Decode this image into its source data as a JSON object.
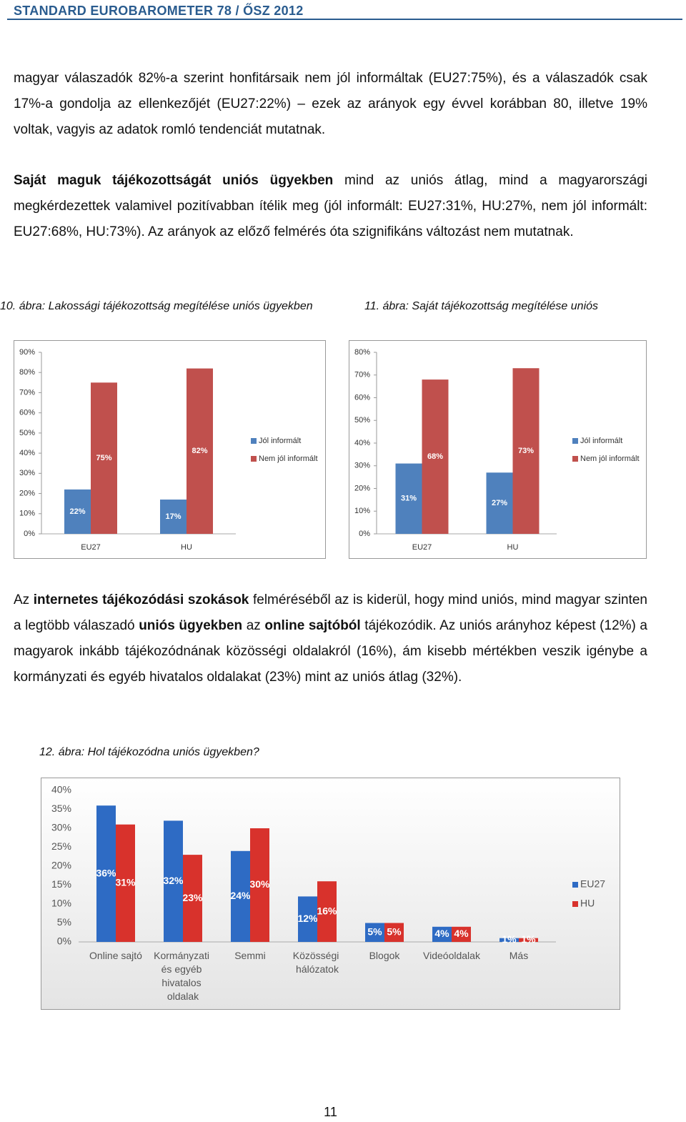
{
  "header": {
    "title": "STANDARD EUROBAROMETER 78 / ŐSZ 2012"
  },
  "paragraphs": [
    {
      "runs": [
        {
          "text": "magyar válaszadók 82%-a szerint honfitársaik nem jól informáltak (EU27:75%), és a válaszadók csak 17%-a gondolja az ellenkezőjét (EU27:22%) – ezek az arányok egy évvel korábban 80, illetve 19% voltak, vagyis az adatok romló tendenciát mutatnak."
        }
      ]
    },
    {
      "runs": [
        {
          "text": "Saját maguk tájékozottságát uniós ügyekben",
          "bold": true
        },
        {
          "text": " mind az uniós átlag, mind a magyarországi megkérdezettek valamivel pozitívabban ítélik meg (jól informált: EU27:31%, HU:27%, nem jól informált: EU27:68%, HU:73%). Az arányok az előző felmérés óta szignifikáns változást nem mutatnak."
        }
      ]
    },
    {
      "runs": [
        {
          "text": "Az "
        },
        {
          "text": "internetes tájékozódási szokások",
          "bold": true
        },
        {
          "text": " felméréséből az is kiderül, hogy mind uniós, mind magyar szinten a legtöbb válaszadó "
        },
        {
          "text": "uniós ügyekben",
          "bold": true
        },
        {
          "text": " az "
        },
        {
          "text": "online sajtóból",
          "bold": true
        },
        {
          "text": " tájékozódik. Az uniós arányhoz képest (12%) a magyarok inkább tájékozódnának közösségi oldalakról (16%), ám kisebb mértékben veszik igénybe a kormányzati és egyéb hivatalos oldalakat (23%) mint az uniós átlag (32%)."
        }
      ]
    }
  ],
  "captions": [
    "10. ábra: Lakossági tájékozottság megítélése uniós ügyekben",
    "11. ábra: Saját tájékozottság megítélése uniós",
    "12. ábra: Hol tájékozódna uniós ügyekben?"
  ],
  "chart_data": [
    {
      "type": "bar",
      "categories": [
        "EU27",
        "HU"
      ],
      "series": [
        {
          "name": "Jól informált",
          "color": "#4f81bd",
          "values": [
            22,
            17
          ],
          "value_labels": [
            "22%",
            "17%"
          ]
        },
        {
          "name": "Nem jól informált",
          "color": "#c0504d",
          "values": [
            75,
            82
          ],
          "value_labels": [
            "75%",
            "82%"
          ]
        }
      ],
      "ylim": [
        0,
        90
      ],
      "yticks": [
        {
          "value": 0,
          "label": "0%"
        },
        {
          "value": 10,
          "label": "10%"
        },
        {
          "value": 20,
          "label": "20%"
        },
        {
          "value": 30,
          "label": "30%"
        },
        {
          "value": 40,
          "label": "40%"
        },
        {
          "value": 50,
          "label": "50%"
        },
        {
          "value": 60,
          "label": "60%"
        },
        {
          "value": 70,
          "label": "70%"
        },
        {
          "value": 80,
          "label": "80%"
        },
        {
          "value": 90,
          "label": "90%"
        }
      ],
      "grid": false,
      "legend": "right"
    },
    {
      "type": "bar",
      "categories": [
        "EU27",
        "HU"
      ],
      "series": [
        {
          "name": "Jól informált",
          "color": "#4f81bd",
          "values": [
            31,
            27
          ],
          "value_labels": [
            "31%",
            "27%"
          ]
        },
        {
          "name": "Nem jól informált",
          "color": "#c0504d",
          "values": [
            68,
            73
          ],
          "value_labels": [
            "68%",
            "73%"
          ]
        }
      ],
      "ylim": [
        0,
        80
      ],
      "yticks": [
        {
          "value": 0,
          "label": "0%"
        },
        {
          "value": 10,
          "label": "10%"
        },
        {
          "value": 20,
          "label": "20%"
        },
        {
          "value": 30,
          "label": "30%"
        },
        {
          "value": 40,
          "label": "40%"
        },
        {
          "value": 50,
          "label": "50%"
        },
        {
          "value": 60,
          "label": "60%"
        },
        {
          "value": 70,
          "label": "70%"
        },
        {
          "value": 80,
          "label": "80%"
        }
      ],
      "grid": false,
      "legend": "right"
    },
    {
      "type": "bar",
      "categories": [
        "Online sajtó",
        "Kormányzati és egyéb hivatalos oldalak",
        "Semmi",
        "Közösségi hálózatok",
        "Blogok",
        "Videóoldalak",
        "Más"
      ],
      "series": [
        {
          "name": "EU27",
          "color": "#2e6bc4",
          "values": [
            36,
            32,
            24,
            12,
            5,
            4,
            1
          ],
          "value_labels": [
            "36%",
            "32%",
            "24%",
            "12%",
            "5%",
            "4%",
            "1%"
          ]
        },
        {
          "name": "HU",
          "color": "#d8322c",
          "values": [
            31,
            23,
            30,
            16,
            5,
            4,
            1
          ],
          "value_labels": [
            "31%",
            "23%",
            "30%",
            "16%",
            "5%",
            "4%",
            "1%"
          ]
        }
      ],
      "ylim": [
        0,
        40
      ],
      "yticks": [
        {
          "value": 0,
          "label": "0%"
        },
        {
          "value": 5,
          "label": "5%"
        },
        {
          "value": 10,
          "label": "10%"
        },
        {
          "value": 15,
          "label": "15%"
        },
        {
          "value": 20,
          "label": "20%"
        },
        {
          "value": 25,
          "label": "25%"
        },
        {
          "value": 30,
          "label": "30%"
        },
        {
          "value": 35,
          "label": "35%"
        },
        {
          "value": 40,
          "label": "40%"
        }
      ],
      "grid": false,
      "legend": "right"
    }
  ],
  "page_number": "11"
}
